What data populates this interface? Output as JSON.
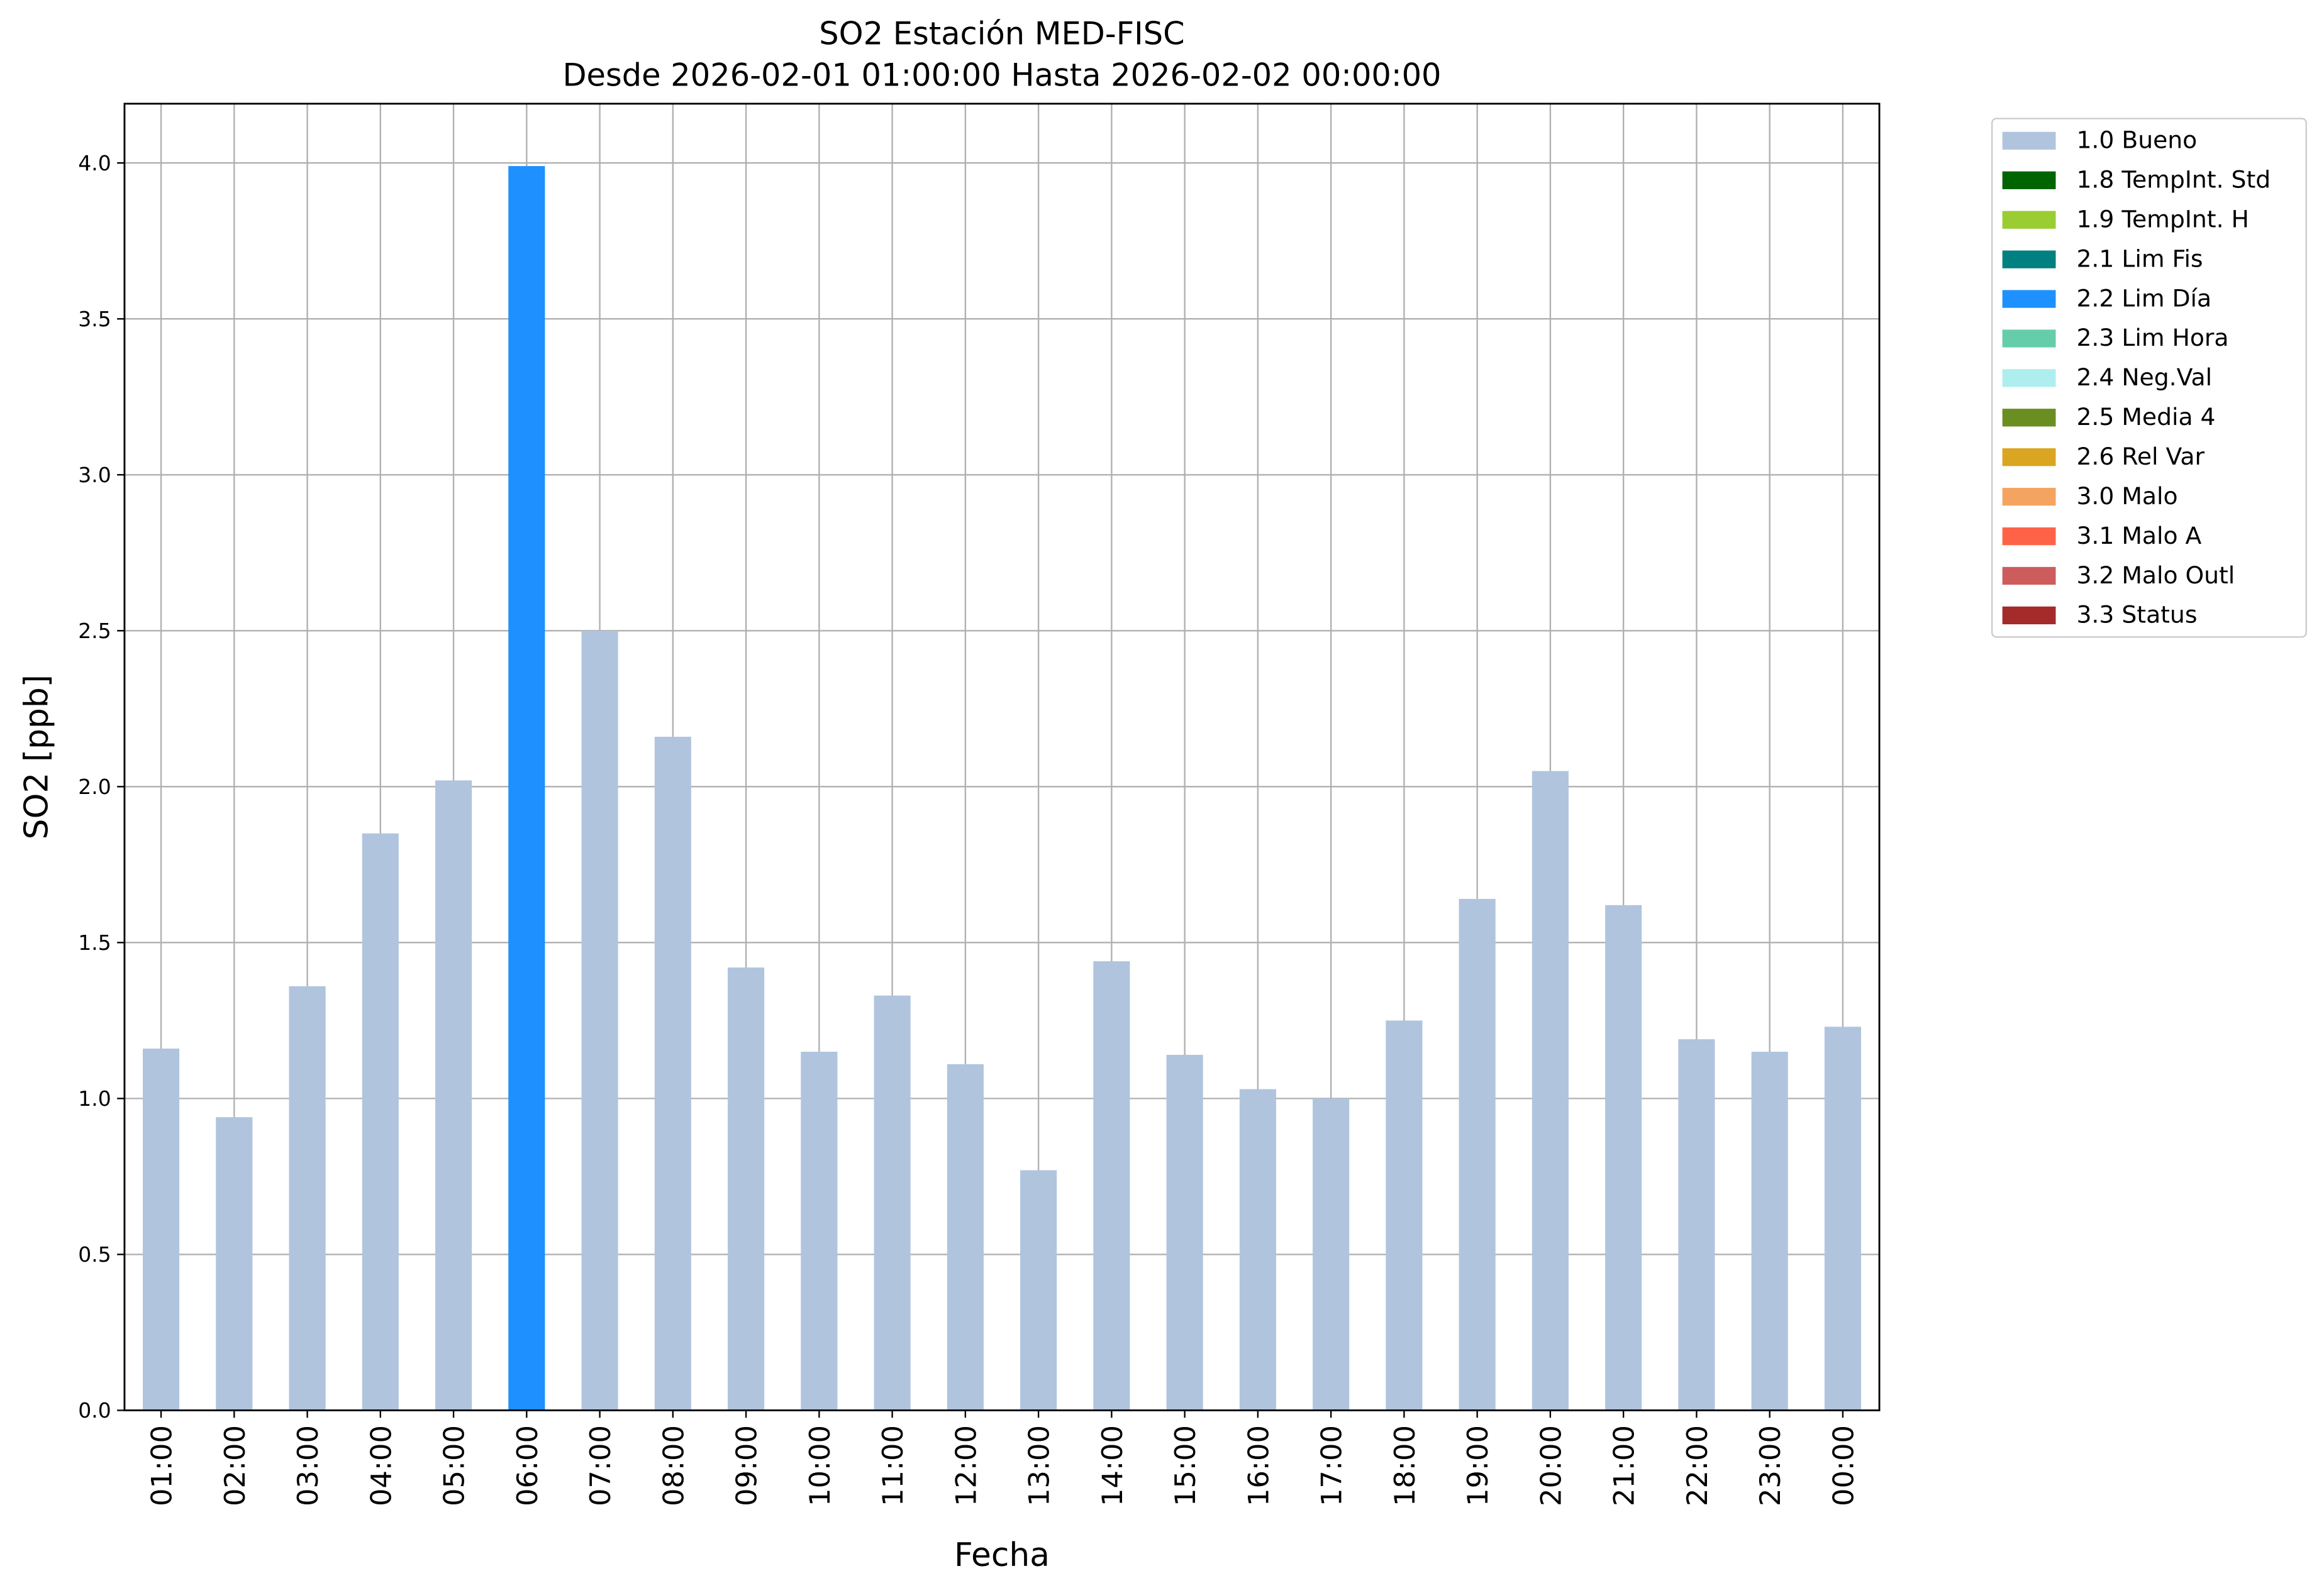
{
  "chart_data": {
    "type": "stacked_bar",
    "title": "SO2 Estación MED-FISC",
    "subtitle": "Desde 2026-02-01 01:00:00 Hasta 2026-02-02 00:00:00",
    "x_label": "Fecha",
    "y_label": "SO2 [ppb]",
    "categories": [
      "01:00",
      "02:00",
      "03:00",
      "04:00",
      "05:00",
      "06:00",
      "07:00",
      "08:00",
      "09:00",
      "10:00",
      "11:00",
      "12:00",
      "13:00",
      "14:00",
      "15:00",
      "16:00",
      "17:00",
      "18:00",
      "19:00",
      "20:00",
      "21:00",
      "22:00",
      "23:00",
      "00:00"
    ],
    "series": [
      {
        "name": "1.0 Bueno",
        "color": "#b0c4de",
        "values": [
          1.16,
          0.94,
          1.36,
          1.85,
          2.02,
          null,
          2.5,
          2.16,
          1.42,
          1.15,
          1.33,
          1.11,
          0.77,
          1.44,
          1.14,
          1.03,
          1.0,
          1.25,
          1.64,
          2.05,
          1.62,
          1.19,
          1.15,
          1.23
        ]
      },
      {
        "name": "1.8 TempInt. Std",
        "color": "#006400",
        "values": [
          null,
          null,
          null,
          null,
          null,
          null,
          null,
          null,
          null,
          null,
          null,
          null,
          null,
          null,
          null,
          null,
          null,
          null,
          null,
          null,
          null,
          null,
          null,
          null
        ]
      },
      {
        "name": "1.9 TempInt. H",
        "color": "#9acd32",
        "values": [
          null,
          null,
          null,
          null,
          null,
          null,
          null,
          null,
          null,
          null,
          null,
          null,
          null,
          null,
          null,
          null,
          null,
          null,
          null,
          null,
          null,
          null,
          null,
          null
        ]
      },
      {
        "name": "2.1 Lim Fis",
        "color": "#008080",
        "values": [
          null,
          null,
          null,
          null,
          null,
          null,
          null,
          null,
          null,
          null,
          null,
          null,
          null,
          null,
          null,
          null,
          null,
          null,
          null,
          null,
          null,
          null,
          null,
          null
        ]
      },
      {
        "name": "2.2 Lim Día",
        "color": "#1e90ff",
        "values": [
          null,
          null,
          null,
          null,
          null,
          3.99,
          null,
          null,
          null,
          null,
          null,
          null,
          null,
          null,
          null,
          null,
          null,
          null,
          null,
          null,
          null,
          null,
          null,
          null
        ]
      },
      {
        "name": "2.3 Lim Hora",
        "color": "#66cdaa",
        "values": [
          null,
          null,
          null,
          null,
          null,
          null,
          null,
          null,
          null,
          null,
          null,
          null,
          null,
          null,
          null,
          null,
          null,
          null,
          null,
          null,
          null,
          null,
          null,
          null
        ]
      },
      {
        "name": "2.4 Neg.Val",
        "color": "#afeeee",
        "values": [
          null,
          null,
          null,
          null,
          null,
          null,
          null,
          null,
          null,
          null,
          null,
          null,
          null,
          null,
          null,
          null,
          null,
          null,
          null,
          null,
          null,
          null,
          null,
          null
        ]
      },
      {
        "name": "2.5 Media 4",
        "color": "#6b8e23",
        "values": [
          null,
          null,
          null,
          null,
          null,
          null,
          null,
          null,
          null,
          null,
          null,
          null,
          null,
          null,
          null,
          null,
          null,
          null,
          null,
          null,
          null,
          null,
          null,
          null
        ]
      },
      {
        "name": "2.6 Rel Var",
        "color": "#daa520",
        "values": [
          null,
          null,
          null,
          null,
          null,
          null,
          null,
          null,
          null,
          null,
          null,
          null,
          null,
          null,
          null,
          null,
          null,
          null,
          null,
          null,
          null,
          null,
          null,
          null
        ]
      },
      {
        "name": "3.0 Malo",
        "color": "#f4a460",
        "values": [
          null,
          null,
          null,
          null,
          null,
          null,
          null,
          null,
          null,
          null,
          null,
          null,
          null,
          null,
          null,
          null,
          null,
          null,
          null,
          null,
          null,
          null,
          null,
          null
        ]
      },
      {
        "name": "3.1 Malo A",
        "color": "#ff6347",
        "values": [
          null,
          null,
          null,
          null,
          null,
          null,
          null,
          null,
          null,
          null,
          null,
          null,
          null,
          null,
          null,
          null,
          null,
          null,
          null,
          null,
          null,
          null,
          null,
          null
        ]
      },
      {
        "name": "3.2 Malo Outl",
        "color": "#cd5c5c",
        "values": [
          null,
          null,
          null,
          null,
          null,
          null,
          null,
          null,
          null,
          null,
          null,
          null,
          null,
          null,
          null,
          null,
          null,
          null,
          null,
          null,
          null,
          null,
          null,
          null
        ]
      },
      {
        "name": "3.3 Status",
        "color": "#a52a2a",
        "values": [
          null,
          null,
          null,
          null,
          null,
          null,
          null,
          null,
          null,
          null,
          null,
          null,
          null,
          null,
          null,
          null,
          null,
          null,
          null,
          null,
          null,
          null,
          null,
          null
        ]
      }
    ],
    "ylim": [
      0,
      4.19
    ],
    "yticks": [
      {
        "value": 0,
        "label": "0.0"
      },
      0.5,
      {
        "value": 1,
        "label": "1.0"
      },
      1.5,
      {
        "value": 2,
        "label": "2.0"
      },
      2.5,
      {
        "value": 3,
        "label": "3.0"
      },
      3.5,
      {
        "value": 4,
        "label": "4.0"
      }
    ],
    "grid": true,
    "legend": "outside-upper-right"
  }
}
